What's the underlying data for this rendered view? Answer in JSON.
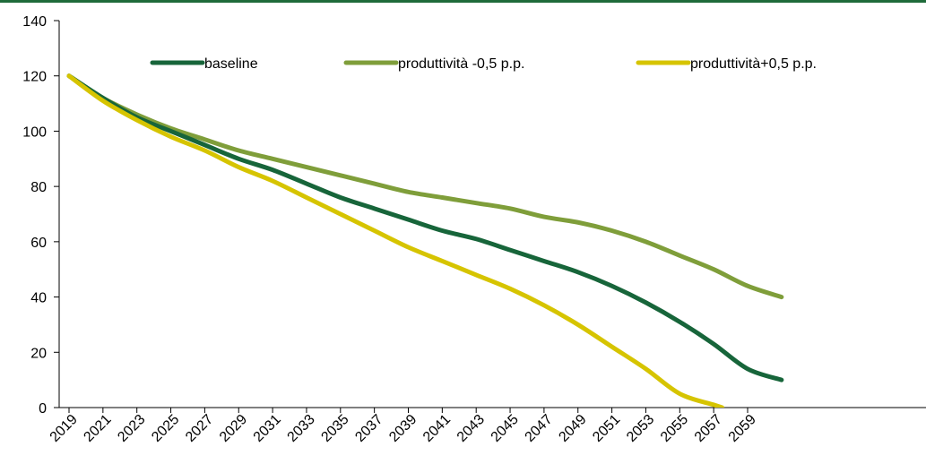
{
  "colors": {
    "frame": "#1f6b3a",
    "baseline": "#17653a",
    "prod_minus": "#7f9e3a",
    "prod_plus": "#d6c400"
  },
  "chart_data": {
    "type": "line",
    "title": "",
    "xlabel": "",
    "ylabel": "",
    "xlim": [
      2019,
      2061
    ],
    "ylim": [
      0,
      140
    ],
    "yticks": [
      0,
      20,
      40,
      60,
      80,
      100,
      120,
      140
    ],
    "xticks": [
      2019,
      2021,
      2023,
      2025,
      2027,
      2029,
      2031,
      2033,
      2035,
      2037,
      2039,
      2041,
      2043,
      2045,
      2047,
      2049,
      2051,
      2053,
      2055,
      2057,
      2059
    ],
    "grid": false,
    "legend_position": "top",
    "series": [
      {
        "name": "baseline",
        "color_key": "baseline",
        "x": [
          2019,
          2021,
          2023,
          2025,
          2027,
          2029,
          2031,
          2033,
          2035,
          2037,
          2039,
          2041,
          2043,
          2045,
          2047,
          2049,
          2051,
          2053,
          2055,
          2057,
          2059,
          2061
        ],
        "y": [
          120,
          112,
          105,
          100,
          95,
          90,
          86,
          81,
          76,
          72,
          68,
          64,
          61,
          57,
          53,
          49,
          44,
          38,
          31,
          23,
          14,
          10
        ]
      },
      {
        "name": "produttività -0,5 p.p.",
        "color_key": "prod_minus",
        "x": [
          2019,
          2021,
          2023,
          2025,
          2027,
          2029,
          2031,
          2033,
          2035,
          2037,
          2039,
          2041,
          2043,
          2045,
          2047,
          2049,
          2051,
          2053,
          2055,
          2057,
          2059,
          2061
        ],
        "y": [
          120,
          112,
          106,
          101,
          97,
          93,
          90,
          87,
          84,
          81,
          78,
          76,
          74,
          72,
          69,
          67,
          64,
          60,
          55,
          50,
          44,
          40
        ]
      },
      {
        "name": "produttività+0,5 p.p.",
        "color_key": "prod_plus",
        "x": [
          2019,
          2021,
          2023,
          2025,
          2027,
          2029,
          2031,
          2033,
          2035,
          2037,
          2039,
          2041,
          2043,
          2045,
          2047,
          2049,
          2051,
          2053,
          2055,
          2057,
          2057.5
        ],
        "y": [
          120,
          111,
          104,
          98,
          93,
          87,
          82,
          76,
          70,
          64,
          58,
          53,
          48,
          43,
          37,
          30,
          22,
          14,
          5,
          1,
          0
        ]
      }
    ]
  }
}
